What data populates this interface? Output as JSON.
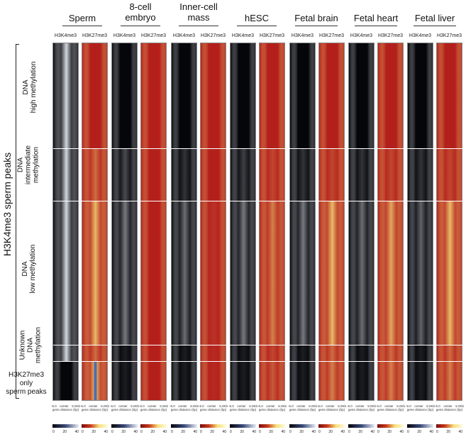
{
  "columns": [
    {
      "title": "Sperm",
      "marks": [
        "H3K4me3",
        "H3K27me3"
      ]
    },
    {
      "title": "8-cell embryo",
      "marks": [
        "H3K4me3",
        "H3K27me3"
      ]
    },
    {
      "title": "Inner-cell mass",
      "marks": [
        "H3K4me3",
        "H3K27me3"
      ]
    },
    {
      "title": "hESC",
      "marks": [
        "H3K4me3",
        "H3K27me3"
      ]
    },
    {
      "title": "Fetal brain",
      "marks": [
        "H3K4me3",
        "H3K27me3"
      ]
    },
    {
      "title": "Fetal heart",
      "marks": [
        "H3K4me3",
        "H3K27me3"
      ]
    },
    {
      "title": "Fetal liver",
      "marks": [
        "H3K4me3",
        "H3K27me3"
      ]
    }
  ],
  "title_lines": {
    "sperm": "Sperm",
    "embryo_1": "8-cell",
    "embryo_2": "embryo",
    "icm_1": "Inner-cell",
    "icm_2": "mass",
    "hesc": "hESC",
    "brain": "Fetal brain",
    "heart": "Fetal heart",
    "liver": "Fetal liver"
  },
  "side_label": "H3K4me3 sperm peaks",
  "rows": {
    "high_1": "DNA",
    "high_2": "high methylation",
    "inter_1": "DNA",
    "inter_2": "intermediate",
    "inter_3": "methylation",
    "low_1": "DNA",
    "low_2": "low methylation",
    "unknown_1": "Unknown",
    "unknown_2": "DNA",
    "unknown_3": "methylation",
    "k27_1": "H3K27me3",
    "k27_2": "only",
    "k27_3": "sperm peaks"
  },
  "x_axis": {
    "left": "-5.0",
    "center": "center",
    "right": "5.0Kb",
    "caption": "gene distance (bp)"
  },
  "scale": {
    "t0": "0",
    "t1": "20",
    "t2": "40"
  },
  "colors": {
    "h3k4_bg": "#05060a",
    "h3k4_signal": "#e8ecf4",
    "h3k27_bg": "#b3201c",
    "h3k27_signal": "#f7e07a"
  }
}
